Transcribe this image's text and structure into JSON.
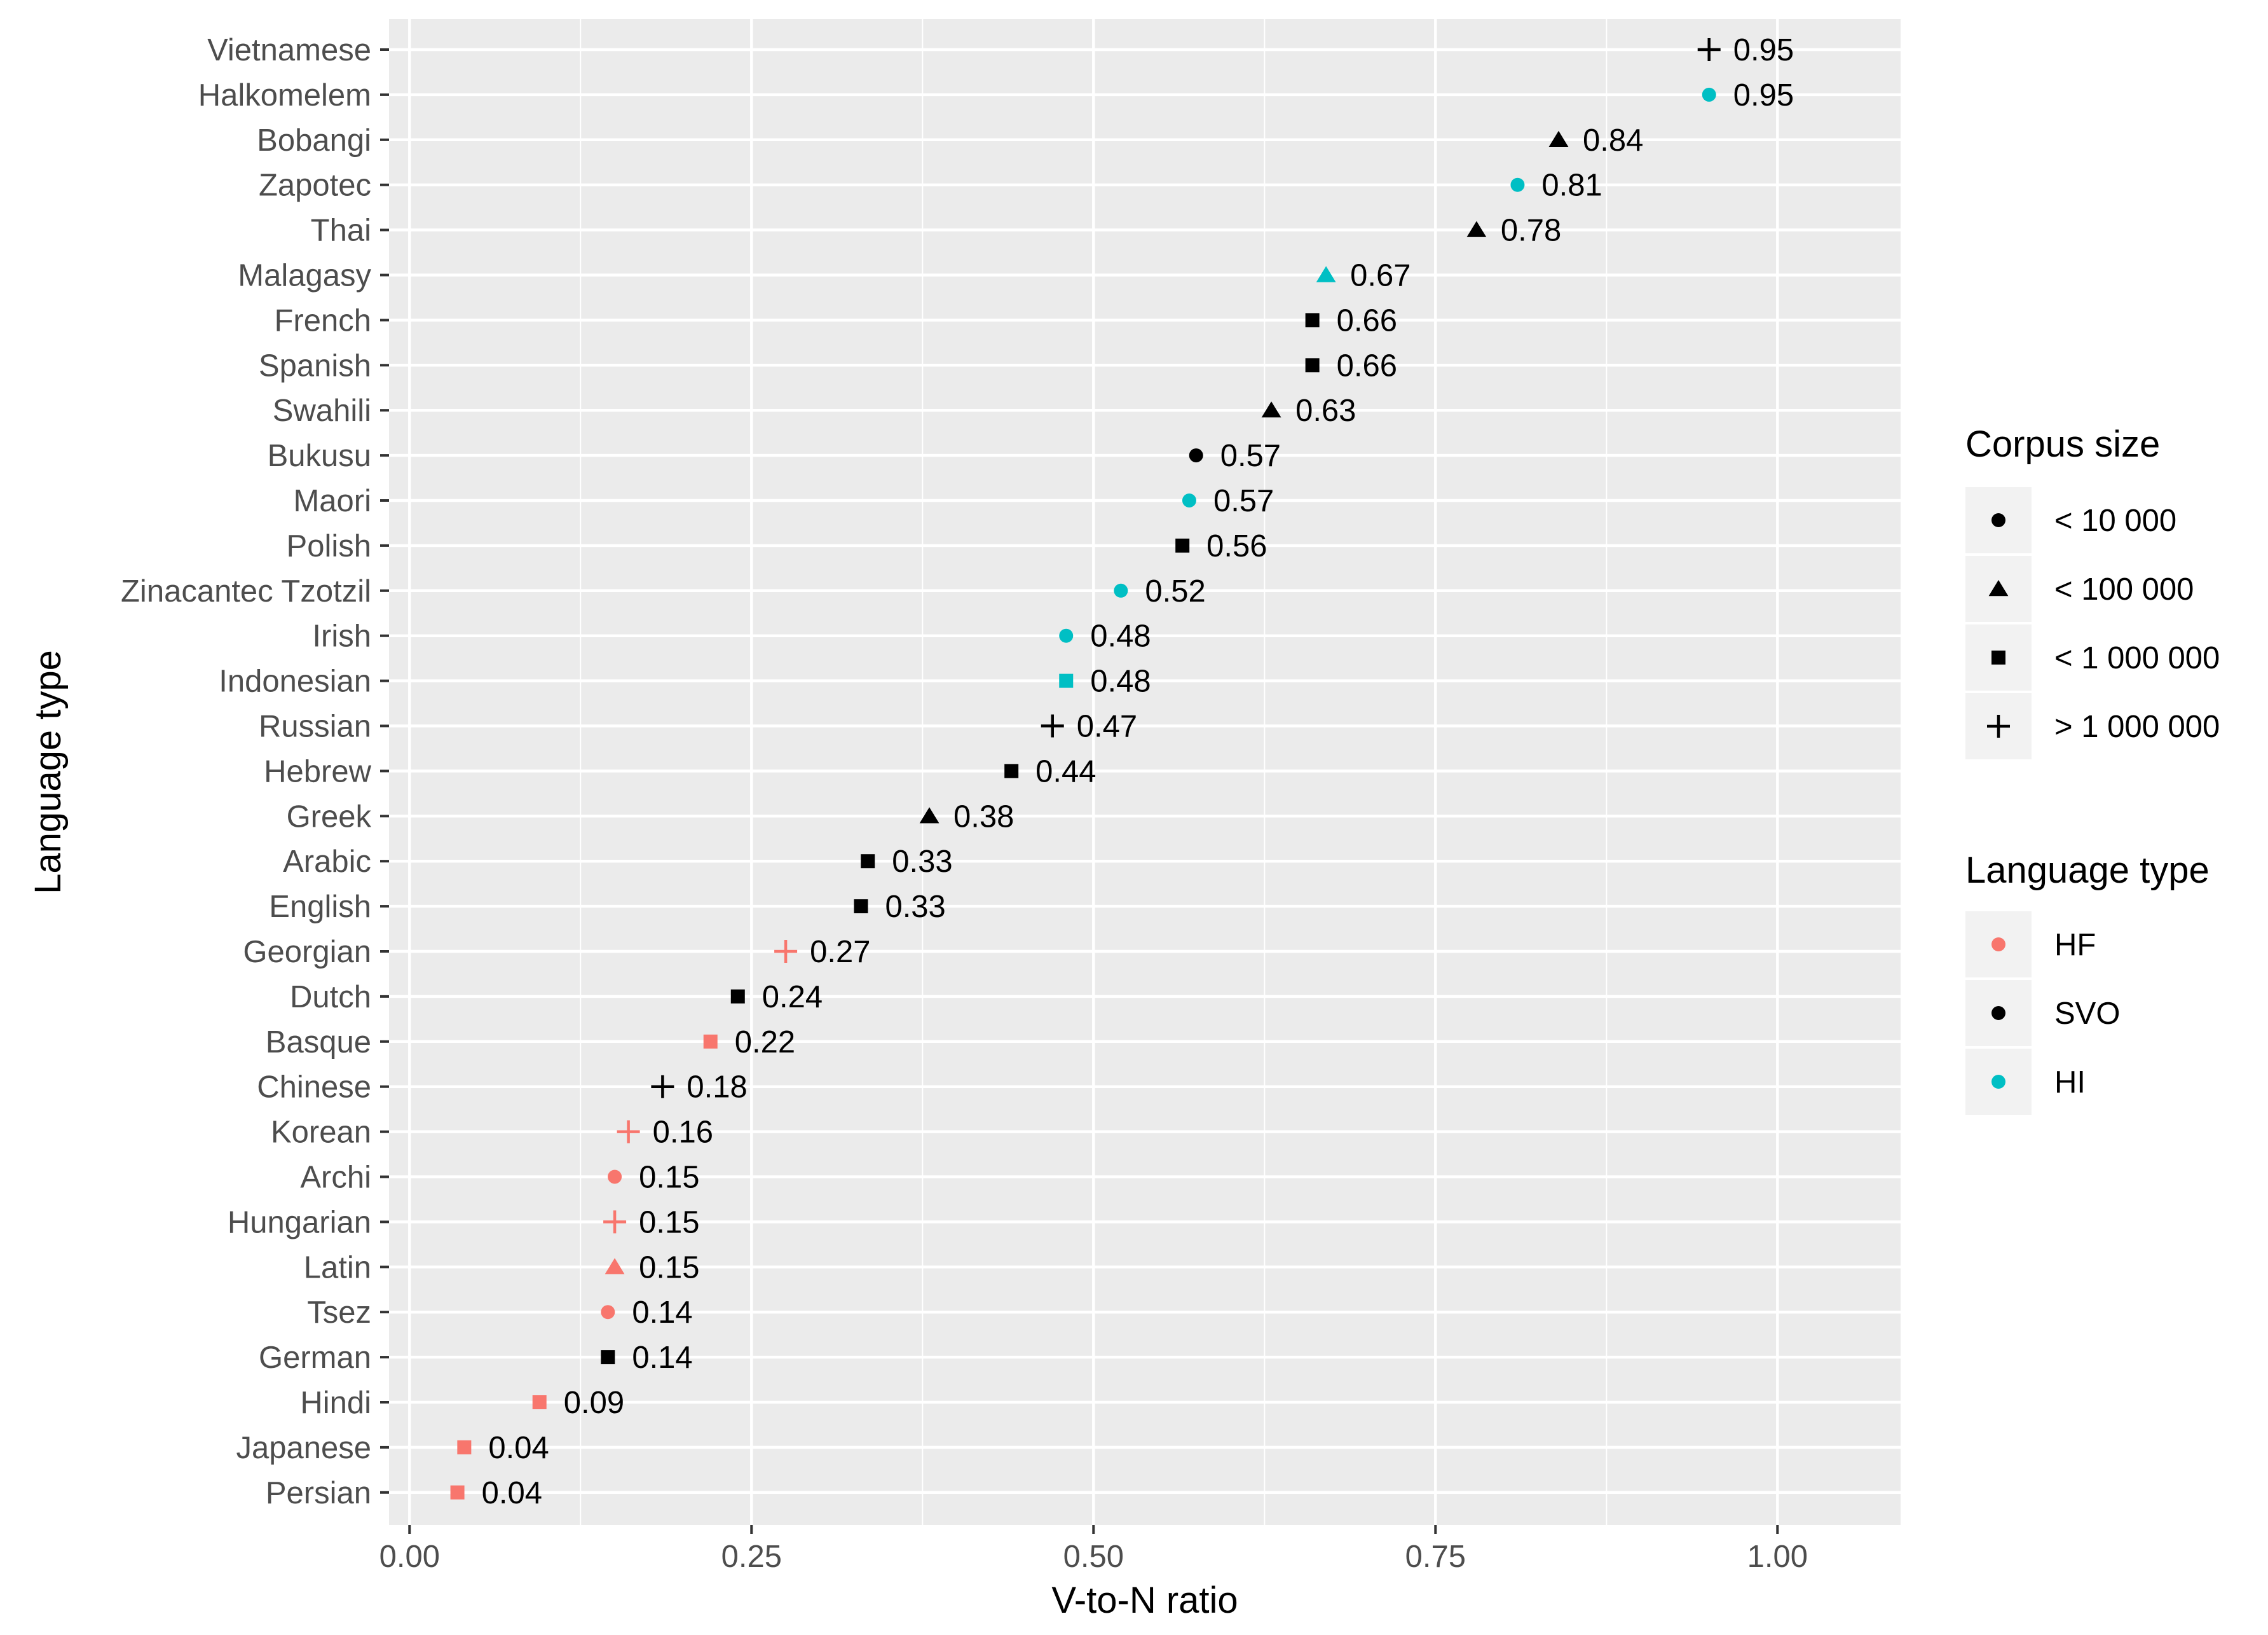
{
  "chart_data": {
    "type": "scatter",
    "xlabel": "V-to-N ratio",
    "ylabel": "Language type",
    "xlim": [
      -0.015,
      1.09
    ],
    "x_ticks": [
      0.0,
      0.25,
      0.5,
      0.75,
      1.0
    ],
    "x_tick_labels": [
      "0.00",
      "0.25",
      "0.50",
      "0.75",
      "1.00"
    ],
    "grid": true,
    "legend_position": "right",
    "legends": [
      {
        "title": "Corpus size",
        "items": [
          {
            "label": "< 10 000",
            "shape": "circle",
            "color": "#000000"
          },
          {
            "label": "< 100 000",
            "shape": "triangle",
            "color": "#000000"
          },
          {
            "label": "< 1 000 000",
            "shape": "square",
            "color": "#000000"
          },
          {
            "label": "> 1 000 000",
            "shape": "plus",
            "color": "#000000"
          }
        ]
      },
      {
        "title": "Language type",
        "items": [
          {
            "label": "HF",
            "shape": "circle",
            "color": "#F8766D"
          },
          {
            "label": "SVO",
            "shape": "circle",
            "color": "#000000"
          },
          {
            "label": "HI",
            "shape": "circle",
            "color": "#00BFC4"
          }
        ]
      }
    ],
    "type_colors": {
      "HF": "#F8766D",
      "SVO": "#000000",
      "HI": "#00BFC4"
    },
    "points": [
      {
        "language": "Vietnamese",
        "value": 0.95,
        "label": "0.95",
        "corpus": "plus",
        "type": "SVO"
      },
      {
        "language": "Halkomelem",
        "value": 0.95,
        "label": "0.95",
        "corpus": "circle",
        "type": "HI"
      },
      {
        "language": "Bobangi",
        "value": 0.84,
        "label": "0.84",
        "corpus": "triangle",
        "type": "SVO"
      },
      {
        "language": "Zapotec",
        "value": 0.81,
        "label": "0.81",
        "corpus": "circle",
        "type": "HI"
      },
      {
        "language": "Thai",
        "value": 0.78,
        "label": "0.78",
        "corpus": "triangle",
        "type": "SVO"
      },
      {
        "language": "Malagasy",
        "value": 0.67,
        "label": "0.67",
        "corpus": "triangle",
        "type": "HI"
      },
      {
        "language": "French",
        "value": 0.66,
        "label": "0.66",
        "corpus": "square",
        "type": "SVO"
      },
      {
        "language": "Spanish",
        "value": 0.66,
        "label": "0.66",
        "corpus": "square",
        "type": "SVO"
      },
      {
        "language": "Swahili",
        "value": 0.63,
        "label": "0.63",
        "corpus": "triangle",
        "type": "SVO"
      },
      {
        "language": "Bukusu",
        "value": 0.575,
        "label": "0.57",
        "corpus": "circle",
        "type": "SVO"
      },
      {
        "language": "Maori",
        "value": 0.57,
        "label": "0.57",
        "corpus": "circle",
        "type": "HI"
      },
      {
        "language": "Polish",
        "value": 0.565,
        "label": "0.56",
        "corpus": "square",
        "type": "SVO"
      },
      {
        "language": "Zinacantec Tzotzil",
        "value": 0.52,
        "label": "0.52",
        "corpus": "circle",
        "type": "HI"
      },
      {
        "language": "Irish",
        "value": 0.48,
        "label": "0.48",
        "corpus": "circle",
        "type": "HI"
      },
      {
        "language": "Indonesian",
        "value": 0.48,
        "label": "0.48",
        "corpus": "square",
        "type": "HI"
      },
      {
        "language": "Russian",
        "value": 0.47,
        "label": "0.47",
        "corpus": "plus",
        "type": "SVO"
      },
      {
        "language": "Hebrew",
        "value": 0.44,
        "label": "0.44",
        "corpus": "square",
        "type": "SVO"
      },
      {
        "language": "Greek",
        "value": 0.38,
        "label": "0.38",
        "corpus": "triangle",
        "type": "SVO"
      },
      {
        "language": "Arabic",
        "value": 0.335,
        "label": "0.33",
        "corpus": "square",
        "type": "SVO"
      },
      {
        "language": "English",
        "value": 0.33,
        "label": "0.33",
        "corpus": "square",
        "type": "SVO"
      },
      {
        "language": "Georgian",
        "value": 0.275,
        "label": "0.27",
        "corpus": "plus",
        "type": "HF"
      },
      {
        "language": "Dutch",
        "value": 0.24,
        "label": "0.24",
        "corpus": "square",
        "type": "SVO"
      },
      {
        "language": "Basque",
        "value": 0.22,
        "label": "0.22",
        "corpus": "square",
        "type": "HF"
      },
      {
        "language": "Chinese",
        "value": 0.185,
        "label": "0.18",
        "corpus": "plus",
        "type": "SVO"
      },
      {
        "language": "Korean",
        "value": 0.16,
        "label": "0.16",
        "corpus": "plus",
        "type": "HF"
      },
      {
        "language": "Archi",
        "value": 0.15,
        "label": "0.15",
        "corpus": "circle",
        "type": "HF"
      },
      {
        "language": "Hungarian",
        "value": 0.15,
        "label": "0.15",
        "corpus": "plus",
        "type": "HF"
      },
      {
        "language": "Latin",
        "value": 0.15,
        "label": "0.15",
        "corpus": "triangle",
        "type": "HF"
      },
      {
        "language": "Tsez",
        "value": 0.145,
        "label": "0.14",
        "corpus": "circle",
        "type": "HF"
      },
      {
        "language": "German",
        "value": 0.145,
        "label": "0.14",
        "corpus": "square",
        "type": "SVO"
      },
      {
        "language": "Hindi",
        "value": 0.095,
        "label": "0.09",
        "corpus": "square",
        "type": "HF"
      },
      {
        "language": "Japanese",
        "value": 0.04,
        "label": "0.04",
        "corpus": "square",
        "type": "HF"
      },
      {
        "language": "Persian",
        "value": 0.035,
        "label": "0.04",
        "corpus": "square",
        "type": "HF"
      }
    ]
  }
}
